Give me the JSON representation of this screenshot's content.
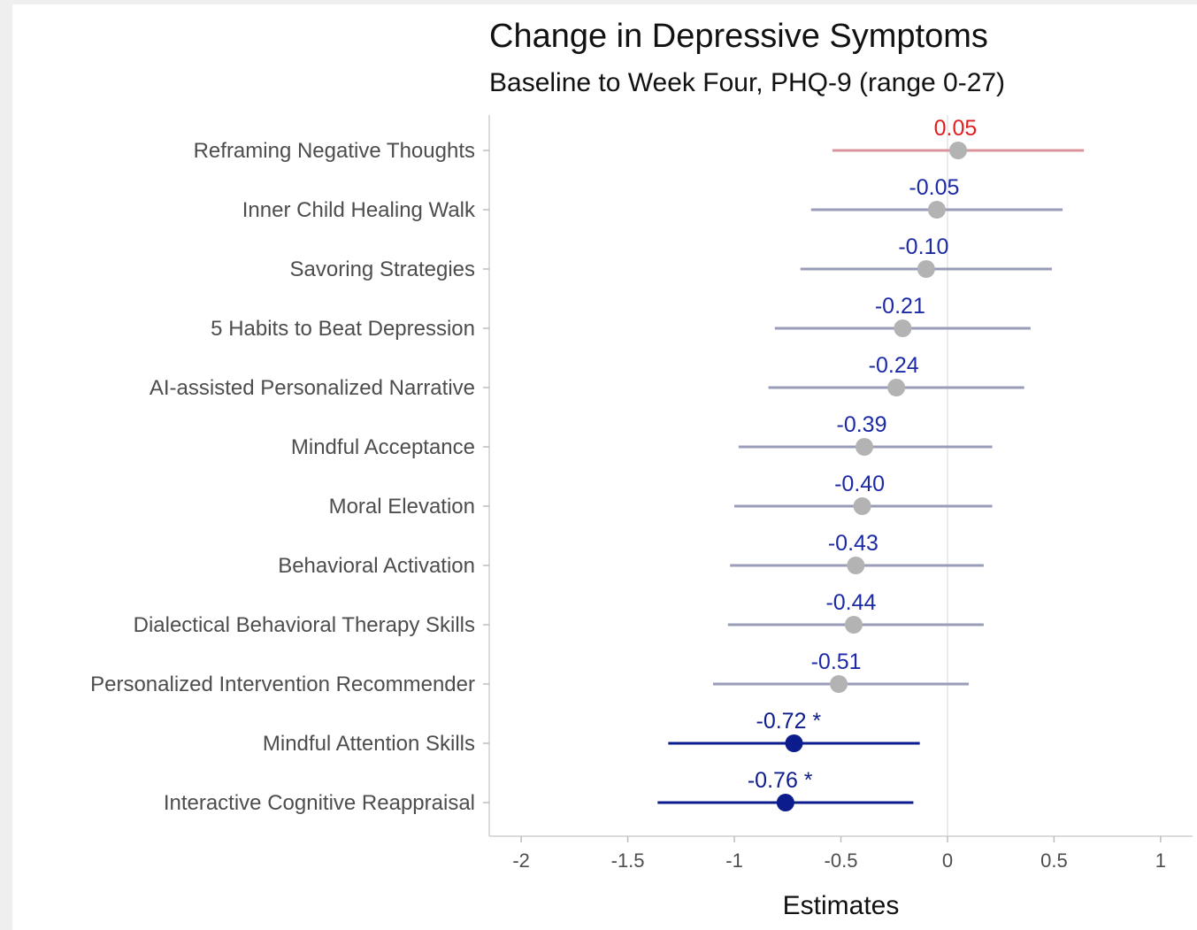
{
  "chart_data": {
    "type": "forest",
    "title": "Change in Depressive Symptoms",
    "subtitle": "Baseline to Week Four, PHQ-9 (range 0-27)",
    "xlabel": "Estimates",
    "xlim": [
      -2.15,
      1.15
    ],
    "xticks": [
      -2,
      -1.5,
      -1,
      -0.5,
      0,
      0.5,
      1
    ],
    "xtick_labels": [
      "-2",
      "-1.5",
      "-1",
      "-0.5",
      "0",
      "0.5",
      "1"
    ],
    "reference_line": 0,
    "colors": {
      "positive_line": "#d9959b",
      "positive_label": "#e02020",
      "ns_line": "#9a9db7",
      "ns_point": "#b3b3b3",
      "ns_label": "#1c2aa6",
      "sig_line": "#0c1c8c",
      "sig_point": "#0c1c8c",
      "sig_label": "#0c1c8c"
    },
    "rows": [
      {
        "label": "Reframing Negative Thoughts",
        "estimate": 0.05,
        "low": -0.54,
        "high": 0.64,
        "value_label": "0.05",
        "status": "positive"
      },
      {
        "label": "Inner Child Healing Walk",
        "estimate": -0.05,
        "low": -0.64,
        "high": 0.54,
        "value_label": "-0.05",
        "status": "ns"
      },
      {
        "label": "Savoring Strategies",
        "estimate": -0.1,
        "low": -0.69,
        "high": 0.49,
        "value_label": "-0.10",
        "status": "ns"
      },
      {
        "label": "5 Habits to Beat Depression",
        "estimate": -0.21,
        "low": -0.81,
        "high": 0.39,
        "value_label": "-0.21",
        "status": "ns"
      },
      {
        "label": "AI-assisted Personalized Narrative",
        "estimate": -0.24,
        "low": -0.84,
        "high": 0.36,
        "value_label": "-0.24",
        "status": "ns"
      },
      {
        "label": "Mindful Acceptance",
        "estimate": -0.39,
        "low": -0.98,
        "high": 0.21,
        "value_label": "-0.39",
        "status": "ns"
      },
      {
        "label": "Moral Elevation",
        "estimate": -0.4,
        "low": -1.0,
        "high": 0.21,
        "value_label": "-0.40",
        "status": "ns"
      },
      {
        "label": "Behavioral Activation",
        "estimate": -0.43,
        "low": -1.02,
        "high": 0.17,
        "value_label": "-0.43",
        "status": "ns"
      },
      {
        "label": "Dialectical Behavioral Therapy Skills",
        "estimate": -0.44,
        "low": -1.03,
        "high": 0.17,
        "value_label": "-0.44",
        "status": "ns"
      },
      {
        "label": "Personalized Intervention Recommender",
        "estimate": -0.51,
        "low": -1.1,
        "high": 0.1,
        "value_label": "-0.51",
        "status": "ns"
      },
      {
        "label": "Mindful Attention Skills",
        "estimate": -0.72,
        "low": -1.31,
        "high": -0.13,
        "value_label": "-0.72 *",
        "status": "sig"
      },
      {
        "label": "Interactive Cognitive Reappraisal",
        "estimate": -0.76,
        "low": -1.36,
        "high": -0.16,
        "value_label": "-0.76 *",
        "status": "sig"
      }
    ]
  }
}
